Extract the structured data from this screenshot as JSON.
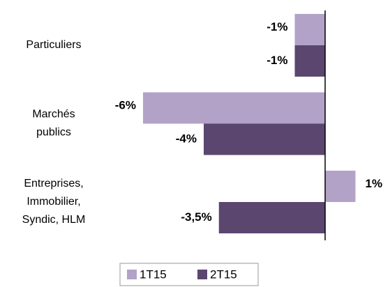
{
  "chart_data": {
    "type": "hbar",
    "categories": [
      [
        "Particuliers"
      ],
      [
        "Marchés",
        "publics"
      ],
      [
        "Entreprises,",
        "Immobilier,",
        "Syndic, HLM"
      ]
    ],
    "series": [
      {
        "name": "1T15",
        "color": "#b3a2c7",
        "values": [
          -1,
          -6,
          1
        ],
        "value_labels": [
          "-1%",
          "-6%",
          "1%"
        ]
      },
      {
        "name": "2T15",
        "color": "#5b4670",
        "values": [
          -1,
          -4,
          -3.5
        ],
        "value_labels": [
          "-1%",
          "-4%",
          "-3,5%"
        ]
      }
    ],
    "xlim": [
      -7,
      1.5
    ],
    "legend": "bottom"
  }
}
